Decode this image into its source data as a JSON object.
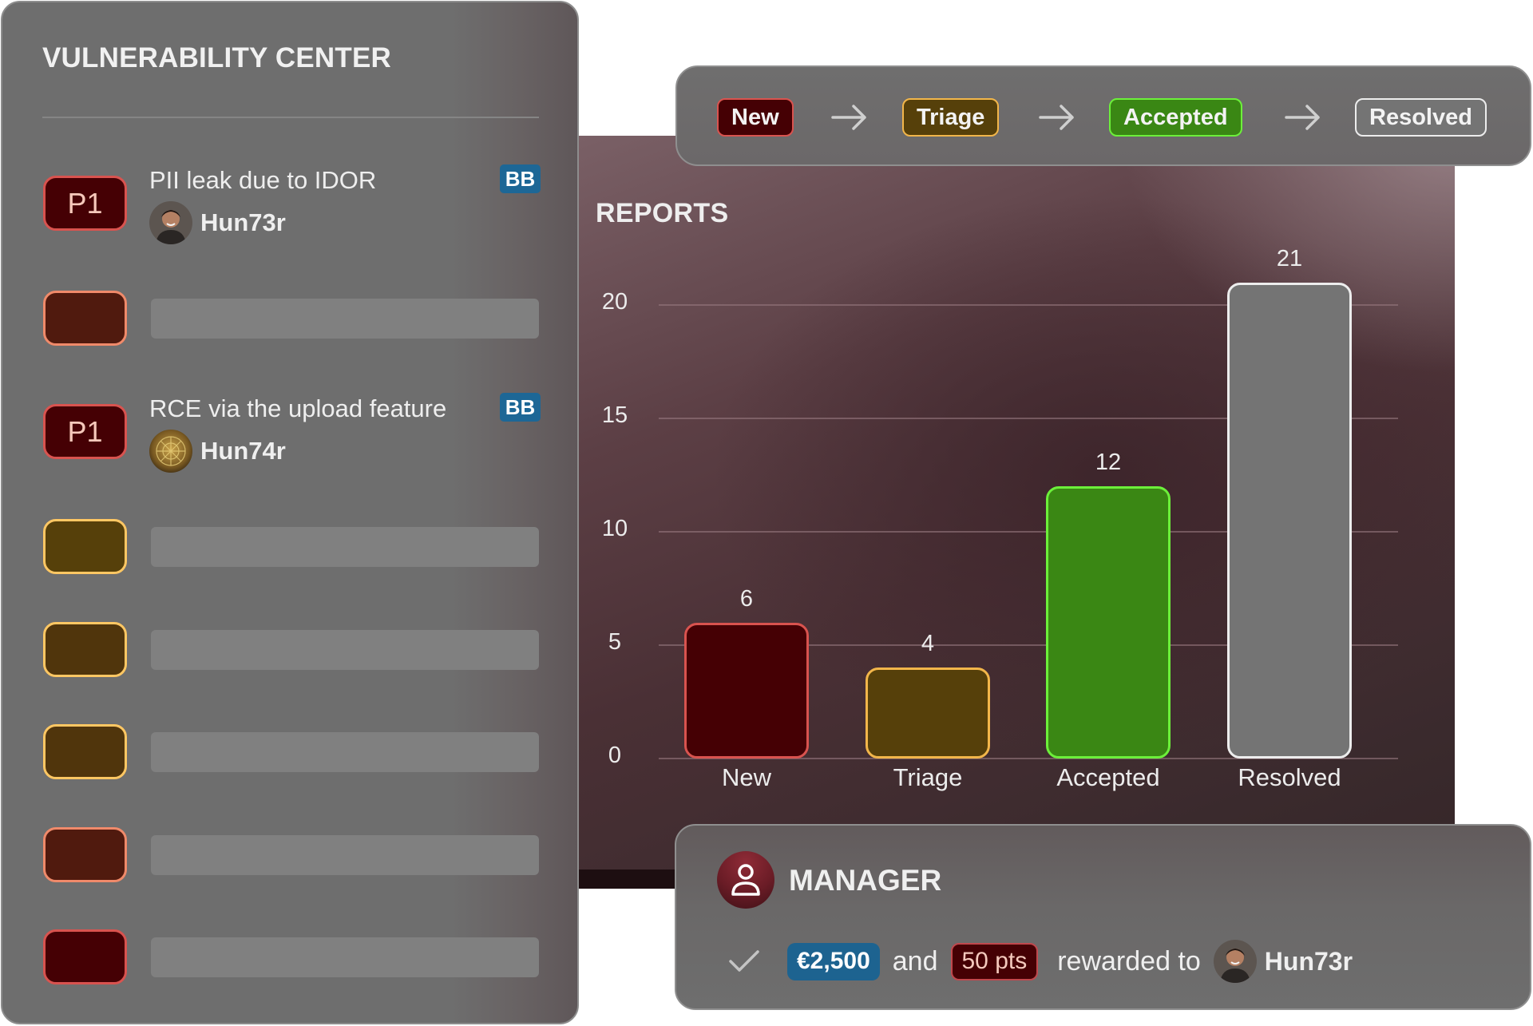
{
  "left_panel": {
    "title": "VULNERABILITY CENTER",
    "reports": [
      {
        "priority": "P1",
        "title": "PII leak due to IDOR",
        "user": "Hun73r",
        "badge": "BB",
        "avatar": "person-photo",
        "box_fill": "#450004",
        "box_border": "#d9534f"
      },
      {
        "priority": "",
        "placeholder": true,
        "box_fill": "#501a0e",
        "box_border": "#f08a6a"
      },
      {
        "priority": "P1",
        "title": "RCE via the upload feature",
        "user": "Hun74r",
        "badge": "BB",
        "avatar": "golden-ornament",
        "box_fill": "#450004",
        "box_border": "#d9534f"
      },
      {
        "priority": "",
        "placeholder": true,
        "box_fill": "#56400a",
        "box_border": "#ffc763"
      },
      {
        "priority": "",
        "placeholder": true,
        "box_fill": "#50350c",
        "box_border": "#ffc763"
      },
      {
        "priority": "",
        "placeholder": true,
        "box_fill": "#50350c",
        "box_border": "#ffc763"
      },
      {
        "priority": "",
        "placeholder": true,
        "box_fill": "#501a0e",
        "box_border": "#f08a6a"
      },
      {
        "priority": "",
        "placeholder": true,
        "box_fill": "#450004",
        "box_border": "#d9534f"
      }
    ]
  },
  "workflow": {
    "stages": [
      {
        "label": "New",
        "fill": "#450004",
        "border": "#d9534f"
      },
      {
        "label": "Triage",
        "fill": "#56400a",
        "border": "#f2b64a"
      },
      {
        "label": "Accepted",
        "fill": "#3a8714",
        "border": "#6cf03a"
      },
      {
        "label": "Resolved",
        "fill": "#747474",
        "border": "#ededed"
      }
    ],
    "arrow_icon": "arrow-right-icon"
  },
  "chart_data": {
    "type": "bar",
    "title": "REPORTS",
    "categories": [
      "New",
      "Triage",
      "Accepted",
      "Resolved"
    ],
    "values": [
      6,
      4,
      12,
      21
    ],
    "colors": [
      "#450004",
      "#56400a",
      "#3a8714",
      "#747474"
    ],
    "border_colors": [
      "#d9534f",
      "#f2b64a",
      "#6cf03a",
      "#ededed"
    ],
    "xlabel": "",
    "ylabel": "",
    "yticks": [
      0,
      5,
      10,
      15,
      20
    ],
    "ylim": [
      0,
      21
    ],
    "grid": true,
    "data_labels": true,
    "legend": false
  },
  "manager": {
    "title": "MANAGER",
    "icon": "user-icon",
    "reward": {
      "check_icon": "check-icon",
      "amount": "€2,500",
      "connector": "and",
      "points": "50 pts",
      "suffix": "rewarded to",
      "user": "Hun73r"
    }
  }
}
